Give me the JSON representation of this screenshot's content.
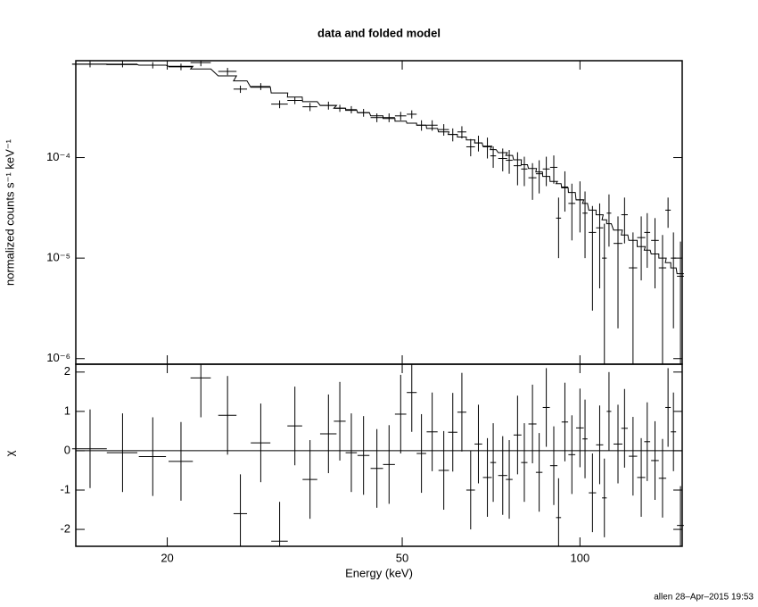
{
  "title": "data and folded model",
  "footer": "allen 28–Apr–2015 19:53",
  "chart_data": [
    {
      "type": "scatter",
      "ylabel": "normalized counts s⁻¹ keV⁻¹",
      "log_x": true,
      "log_y": true,
      "xlim": [
        14,
        149
      ],
      "ylim": [
        8.8e-07,
        0.00092
      ],
      "yticks": [
        {
          "value": 1e-06,
          "label": "10⁻⁶"
        },
        {
          "value": 1e-05,
          "label": "10⁻⁵"
        },
        {
          "value": 0.0001,
          "label": "10⁻⁴"
        }
      ],
      "color": "#000000",
      "x": [
        14.8,
        16.8,
        18.9,
        21.1,
        22.8,
        25.3,
        26.6,
        28.8,
        31.0,
        32.9,
        34.9,
        37.5,
        39.2,
        41.0,
        43.0,
        45.3,
        47.5,
        49.7,
        51.9,
        53.9,
        56.2,
        58.8,
        60.9,
        63.1,
        65.3,
        67.3,
        69.7,
        71.3,
        74.0,
        75.9,
        78.4,
        80.5,
        83.1,
        85.3,
        87.7,
        90.3,
        92.0,
        94.3,
        96.9,
        100,
        102,
        105,
        108,
        110,
        112,
        116,
        119,
        123,
        127,
        130,
        134,
        138,
        141,
        144,
        148
      ],
      "xerr": [
        1.0,
        1.0,
        1.0,
        1.0,
        0.9,
        0.9,
        0.7,
        1.1,
        1.0,
        0.95,
        1.0,
        1.2,
        0.9,
        0.9,
        1.0,
        1.1,
        1.1,
        1.1,
        1.0,
        1.0,
        1.2,
        1.2,
        1.1,
        1.1,
        1.1,
        1.0,
        1.2,
        0.8,
        1.3,
        1.0,
        1.2,
        1.0,
        1.3,
        1.1,
        1.2,
        1.3,
        0.9,
        1.2,
        1.3,
        1.5,
        1.0,
        1.5,
        1.5,
        1.0,
        1.0,
        2.0,
        1.5,
        2.0,
        2.0,
        1.5,
        2.0,
        2.0,
        1.5,
        1.5,
        2.0
      ],
      "values": [
        0.00085,
        0.00085,
        0.00083,
        0.0008,
        0.00088,
        0.00072,
        0.00048,
        0.00051,
        0.00034,
        0.00037,
        0.00032,
        0.00033,
        0.00031,
        0.0003,
        0.00028,
        0.00025,
        0.00025,
        0.00026,
        0.00027,
        0.00021,
        0.00021,
        0.00019,
        0.00017,
        0.00018,
        0.000128,
        0.00014,
        0.000128,
        0.000104,
        9.8e-05,
        9.4e-05,
        8.3e-05,
        7.7e-05,
        6.3e-05,
        6.9e-05,
        7.7e-05,
        8e-05,
        2.5e-05,
        5.1e-05,
        3.5e-05,
        3.8e-05,
        2.8e-05,
        1.8e-05,
        2e-05,
        1e-05,
        2.8e-05,
        1.4e-05,
        2.7e-05,
        8e-06,
        1.6e-05,
        1.8e-05,
        1.5e-05,
        8e-06,
        3e-05,
        1e-05,
        6.6e-06
      ],
      "yerr": [
        6e-05,
        6e-05,
        6e-05,
        6e-05,
        7e-05,
        6e-05,
        4e-05,
        4e-05,
        3e-05,
        3e-05,
        3e-05,
        3e-05,
        2.5e-05,
        2.5e-05,
        2.5e-05,
        2.5e-05,
        2.5e-05,
        2.5e-05,
        2.5e-05,
        2.5e-05,
        2.5e-05,
        2.5e-05,
        2.5e-05,
        2.5e-05,
        2.5e-05,
        2.5e-05,
        3e-05,
        2.5e-05,
        2.5e-05,
        2.5e-05,
        3e-05,
        2.5e-05,
        2.5e-05,
        2.5e-05,
        2.5e-05,
        2.5e-05,
        1.5e-05,
        2.2e-05,
        2e-05,
        2e-05,
        1.8e-05,
        1.5e-05,
        1.5e-05,
        1.2e-05,
        1.5e-05,
        1.2e-05,
        1.3e-05,
        1e-05,
        1e-05,
        1e-05,
        1e-05,
        9e-06,
        1e-05,
        8e-06,
        8e-06
      ],
      "model": [
        0.00085,
        0.00084,
        0.00083,
        0.00081,
        0.00076,
        0.00065,
        0.00058,
        0.0005,
        0.00044,
        0.0004,
        0.00036,
        0.00033,
        0.00031,
        0.000295,
        0.00028,
        0.00026,
        0.000245,
        0.00023,
        0.00022,
        0.00021,
        0.000195,
        0.00018,
        0.00017,
        0.00016,
        0.00015,
        0.00014,
        0.00013,
        0.00012,
        0.000112,
        0.000105,
        9.5e-05,
        8.5e-05,
        7.8e-05,
        7.2e-05,
        6.5e-05,
        5.8e-05,
        5.5e-05,
        5e-05,
        4.5e-05,
        3.8e-05,
        3.5e-05,
        3e-05,
        2.7e-05,
        2.4e-05,
        2.2e-05,
        1.9e-05,
        1.7e-05,
        1.5e-05,
        1.3e-05,
        1.2e-05,
        1.1e-05,
        1e-05,
        9e-06,
        8e-06,
        7e-06
      ]
    },
    {
      "type": "residuals",
      "ylabel": "χ",
      "xlabel": "Energy (keV)",
      "log_x": true,
      "xlim": [
        14,
        149
      ],
      "ylim": [
        -2.43,
        2.2
      ],
      "xticks": [
        20,
        50,
        100
      ],
      "yticks": [
        -2,
        -1,
        0,
        1,
        2
      ],
      "color": "#000000",
      "reference_line": {
        "value": 0,
        "color": "#00dd00"
      },
      "values": [
        0.05,
        -0.05,
        -0.15,
        -0.27,
        1.85,
        0.9,
        -1.6,
        0.2,
        -2.3,
        0.63,
        -0.73,
        0.43,
        0.75,
        -0.05,
        -0.12,
        -0.45,
        -0.35,
        0.93,
        1.48,
        -0.07,
        0.48,
        -0.5,
        0.47,
        0.98,
        -1.0,
        0.17,
        -0.68,
        -0.3,
        -0.63,
        -0.73,
        0.4,
        -0.3,
        0.68,
        -0.55,
        1.1,
        -0.38,
        -1.7,
        0.73,
        -0.1,
        0.58,
        0.3,
        -1.07,
        0.15,
        -1.2,
        1.0,
        0.17,
        0.57,
        -0.14,
        -0.68,
        0.23,
        -0.25,
        -0.7,
        1.1,
        0.48,
        -1.9
      ],
      "errors": [
        1,
        1,
        1,
        1,
        1,
        1,
        1,
        1,
        1,
        1,
        1,
        1,
        1,
        1,
        1,
        1,
        1,
        1,
        1,
        1,
        1,
        1,
        1,
        1,
        1,
        1,
        1,
        1,
        1,
        1,
        1,
        1,
        1,
        1,
        1,
        1,
        1,
        1,
        1,
        1,
        1,
        1,
        1,
        1,
        1,
        1,
        1,
        1,
        1,
        1,
        1,
        1,
        1,
        1,
        1
      ]
    }
  ]
}
